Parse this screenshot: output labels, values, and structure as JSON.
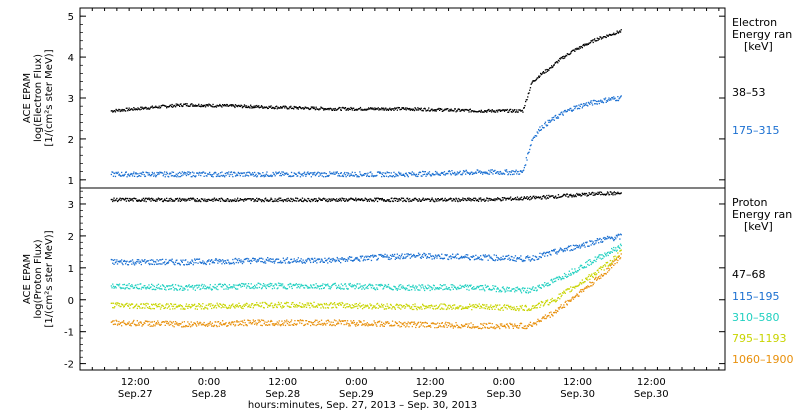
{
  "chart_data": [
    {
      "type": "scatter",
      "ylabel_lines": [
        "ACE EPAM",
        "log(Electron Flux)",
        "[1/(cm²s ster MeV)]"
      ],
      "legend_title_lines": [
        "Electron",
        "Energy ran",
        "[keV]"
      ],
      "ylim": [
        0.8,
        5.2
      ],
      "yticks": [
        1,
        2,
        3,
        4,
        5
      ],
      "series": [
        {
          "name": "38–53",
          "color": "#000000",
          "x": [
            8.0,
            20.0,
            32.0,
            44.0,
            56.0,
            68.0,
            75.0,
            76.5,
            78.0,
            79.5,
            81.0,
            83.0,
            85.0,
            87.0,
            89.0,
            91.0
          ],
          "y": [
            2.7,
            2.85,
            2.8,
            2.75,
            2.75,
            2.7,
            2.7,
            3.4,
            3.6,
            3.75,
            3.95,
            4.15,
            4.3,
            4.45,
            4.55,
            4.65
          ]
        },
        {
          "name": "175–315",
          "color": "#1a6fd1",
          "x": [
            8.0,
            20.0,
            32.0,
            44.0,
            56.0,
            68.0,
            75.0,
            76.5,
            78.0,
            79.5,
            81.0,
            83.0,
            85.0,
            87.0,
            89.0,
            91.0
          ],
          "y": [
            1.15,
            1.15,
            1.15,
            1.15,
            1.15,
            1.2,
            1.2,
            2.0,
            2.3,
            2.45,
            2.6,
            2.75,
            2.85,
            2.92,
            2.98,
            3.02
          ]
        }
      ]
    },
    {
      "type": "scatter",
      "ylabel_lines": [
        "ACE EPAM",
        "log(Proton Flux)",
        "[1/(cm²s ster MeV)]"
      ],
      "legend_title_lines": [
        "Proton",
        "Energy ran",
        "[keV]"
      ],
      "ylim": [
        -2.2,
        3.5
      ],
      "yticks": [
        -2,
        -1,
        0,
        1,
        2,
        3
      ],
      "series": [
        {
          "name": "47–68",
          "color": "#000000",
          "x": [
            8.0,
            20.0,
            32.0,
            44.0,
            56.0,
            68.0,
            76.0,
            80.0,
            84.0,
            88.0,
            91.0
          ],
          "y": [
            3.15,
            3.15,
            3.15,
            3.15,
            3.15,
            3.15,
            3.2,
            3.25,
            3.3,
            3.35,
            3.35
          ]
        },
        {
          "name": "115–195",
          "color": "#1a6fd1",
          "x": [
            8.0,
            20.0,
            32.0,
            44.0,
            56.0,
            68.0,
            76.0,
            80.0,
            84.0,
            88.0,
            91.0
          ],
          "y": [
            1.2,
            1.2,
            1.25,
            1.25,
            1.4,
            1.35,
            1.3,
            1.5,
            1.7,
            1.9,
            2.0
          ]
        },
        {
          "name": "310–580",
          "color": "#20d0c0",
          "x": [
            8.0,
            20.0,
            32.0,
            44.0,
            56.0,
            68.0,
            76.0,
            80.0,
            84.0,
            88.0,
            91.0
          ],
          "y": [
            0.45,
            0.4,
            0.45,
            0.45,
            0.4,
            0.4,
            0.3,
            0.6,
            1.0,
            1.4,
            1.7
          ]
        },
        {
          "name": "795–1193",
          "color": "#c8d400",
          "x": [
            8.0,
            20.0,
            32.0,
            44.0,
            56.0,
            68.0,
            76.0,
            80.0,
            84.0,
            88.0,
            91.0
          ],
          "y": [
            -0.15,
            -0.2,
            -0.15,
            -0.15,
            -0.2,
            -0.2,
            -0.25,
            0.0,
            0.5,
            1.0,
            1.5
          ]
        },
        {
          "name": "1060–1900",
          "color": "#e8900c",
          "x": [
            8.0,
            20.0,
            32.0,
            44.0,
            56.0,
            68.0,
            76.0,
            80.0,
            84.0,
            88.0,
            91.0
          ],
          "y": [
            -0.7,
            -0.75,
            -0.7,
            -0.7,
            -0.75,
            -0.8,
            -0.8,
            -0.4,
            0.2,
            0.8,
            1.4
          ]
        }
      ]
    }
  ],
  "x_axis": {
    "range_hours": [
      3.0,
      108.0
    ],
    "ticks": [
      {
        "hour": 12,
        "time": "12:00",
        "date": "Sep.27"
      },
      {
        "hour": 24,
        "time": "0:00",
        "date": "Sep.28"
      },
      {
        "hour": 36,
        "time": "12:00",
        "date": "Sep.28"
      },
      {
        "hour": 48,
        "time": "0:00",
        "date": "Sep.29"
      },
      {
        "hour": 60,
        "time": "12:00",
        "date": "Sep.29"
      },
      {
        "hour": 72,
        "time": "0:00",
        "date": "Sep.30"
      },
      {
        "hour": 84,
        "time": "12:00",
        "date": "Sep.30"
      }
    ],
    "xlabel": "hours:minutes, Sep. 27, 2013 – Sep. 30, 2013"
  }
}
